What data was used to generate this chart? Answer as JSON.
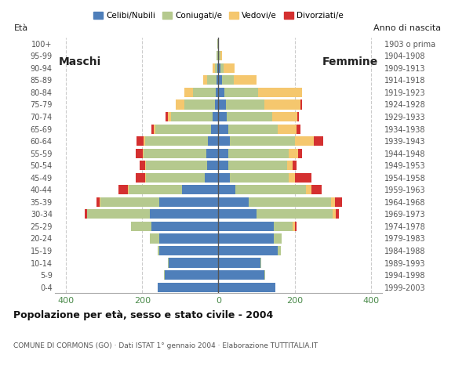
{
  "age_groups": [
    "100+",
    "95-99",
    "90-94",
    "85-89",
    "80-84",
    "75-79",
    "70-74",
    "65-69",
    "60-64",
    "55-59",
    "50-54",
    "45-49",
    "40-44",
    "35-39",
    "30-34",
    "25-29",
    "20-24",
    "15-19",
    "10-14",
    "5-9",
    "0-4"
  ],
  "birth_years": [
    "1903 o prima",
    "1904-1908",
    "1909-1913",
    "1914-1918",
    "1919-1923",
    "1924-1928",
    "1929-1933",
    "1934-1938",
    "1939-1943",
    "1944-1948",
    "1949-1953",
    "1954-1958",
    "1959-1963",
    "1964-1968",
    "1969-1973",
    "1974-1978",
    "1979-1983",
    "1984-1988",
    "1989-1993",
    "1994-1998",
    "1999-2003"
  ],
  "males": {
    "celibi": [
      0,
      1,
      2,
      5,
      7,
      10,
      15,
      20,
      28,
      32,
      30,
      35,
      95,
      155,
      180,
      175,
      155,
      155,
      130,
      140,
      160
    ],
    "coniugati": [
      2,
      3,
      8,
      25,
      60,
      80,
      110,
      145,
      165,
      165,
      160,
      155,
      140,
      155,
      165,
      55,
      25,
      5,
      3,
      2,
      0
    ],
    "vedovi": [
      0,
      0,
      5,
      10,
      22,
      22,
      8,
      5,
      3,
      2,
      2,
      2,
      2,
      2,
      0,
      0,
      0,
      0,
      0,
      0,
      0
    ],
    "divorziati": [
      0,
      0,
      0,
      0,
      0,
      0,
      5,
      5,
      20,
      18,
      15,
      25,
      25,
      8,
      5,
      0,
      0,
      0,
      0,
      0,
      0
    ]
  },
  "females": {
    "nubili": [
      1,
      2,
      5,
      10,
      15,
      20,
      22,
      25,
      30,
      25,
      25,
      30,
      45,
      80,
      100,
      145,
      145,
      155,
      110,
      120,
      150
    ],
    "coniugate": [
      0,
      3,
      8,
      30,
      90,
      100,
      120,
      130,
      170,
      160,
      155,
      155,
      185,
      215,
      200,
      50,
      20,
      8,
      2,
      2,
      0
    ],
    "vedove": [
      0,
      5,
      30,
      60,
      115,
      95,
      65,
      50,
      50,
      25,
      15,
      15,
      15,
      10,
      8,
      5,
      0,
      0,
      0,
      0,
      0
    ],
    "divorziate": [
      0,
      0,
      0,
      0,
      0,
      5,
      5,
      10,
      25,
      10,
      10,
      45,
      25,
      20,
      8,
      5,
      0,
      0,
      0,
      0,
      0
    ]
  },
  "colors": {
    "celibi": "#4f7fba",
    "coniugati": "#b5c98e",
    "vedovi": "#f5c76e",
    "divorziati": "#d43030"
  },
  "xlim": 430,
  "title": "Popolazione per età, sesso e stato civile - 2004",
  "subtitle": "COMUNE DI CORMONS (GO) · Dati ISTAT 1° gennaio 2004 · Elaborazione TUTTITALIA.IT",
  "header_left": "Età",
  "header_right": "Anno di nascita",
  "legend_labels": [
    "Celibi/Nubili",
    "Coniugati/e",
    "Vedovi/e",
    "Divorziati/e"
  ],
  "maschi_label": "Maschi",
  "femmine_label": "Femmine",
  "bg_color": "#ffffff",
  "grid_color": "#cccccc",
  "axis_color": "#4a8a4a",
  "text_color": "#555555"
}
